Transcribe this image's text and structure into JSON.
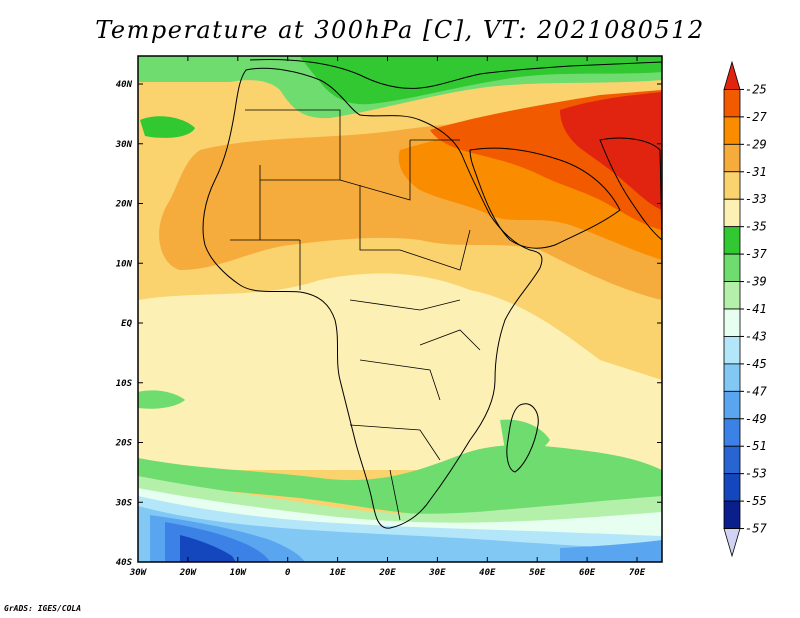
{
  "title": "Temperature at 300hPa [C], VT: 2021080512",
  "credit": "GrADS: IGES/COLA",
  "lat_ticks": [
    "40N",
    "30N",
    "20N",
    "10N",
    "EQ",
    "10S",
    "20S",
    "30S",
    "40S"
  ],
  "lon_ticks": [
    "30W",
    "20W",
    "10W",
    "0",
    "10E",
    "20E",
    "30E",
    "40E",
    "50E",
    "60E",
    "70E"
  ],
  "colorbar": {
    "labels": [
      "-25",
      "-27",
      "-29",
      "-31",
      "-33",
      "-35",
      "-37",
      "-39",
      "-41",
      "-43",
      "-45",
      "-47",
      "-49",
      "-51",
      "-53",
      "-55",
      "-57"
    ],
    "colors": [
      "#e02410",
      "#f25a00",
      "#fa8c00",
      "#f6ac3c",
      "#fad26e",
      "#fcf0b4",
      "#32c832",
      "#6edc6e",
      "#b4f0aa",
      "#e6fff0",
      "#b4e6fa",
      "#82c8f5",
      "#5aa5f0",
      "#3c82e6",
      "#2864d2",
      "#1446be",
      "#0a1e8c",
      "#d2d2f5"
    ]
  },
  "map": {
    "colors": {
      "yellow_light": "#fcf0b4",
      "yellow": "#fad26e",
      "orange_light": "#f6ac3c",
      "orange": "#fa8c00",
      "orange_dark": "#f25a00",
      "red": "#e02410",
      "green_dark": "#32c832",
      "green": "#6edc6e",
      "green_light": "#b4f0aa",
      "cyan": "#e6fff0",
      "blue_light": "#b4e6fa",
      "blue": "#82c8f5",
      "blue_mid": "#5aa5f0",
      "blue_dark": "#3c82e6",
      "navy": "#1446be"
    }
  }
}
